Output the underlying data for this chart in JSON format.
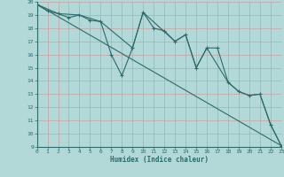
{
  "xlabel": "Humidex (Indice chaleur)",
  "background_color": "#b2d8d8",
  "grid_color": "#d4d4d4",
  "line_color": "#2d6b6b",
  "ylim": [
    9,
    20
  ],
  "xlim": [
    0,
    23
  ],
  "yticks": [
    9,
    10,
    11,
    12,
    13,
    14,
    15,
    16,
    17,
    18,
    19,
    20
  ],
  "xticks": [
    0,
    1,
    2,
    3,
    4,
    5,
    6,
    7,
    8,
    9,
    10,
    11,
    12,
    13,
    14,
    15,
    16,
    17,
    18,
    19,
    20,
    21,
    22,
    23
  ],
  "line1_x": [
    0,
    1,
    2,
    3,
    4,
    5,
    6,
    7,
    8,
    9,
    10,
    11,
    12,
    13,
    14,
    15,
    16,
    17,
    18,
    19,
    20,
    21,
    22,
    23
  ],
  "line1_y": [
    19.8,
    19.3,
    19.1,
    18.8,
    19.0,
    18.6,
    18.5,
    16.0,
    14.4,
    16.5,
    19.2,
    18.0,
    17.8,
    17.0,
    17.5,
    15.0,
    16.5,
    16.5,
    13.9,
    13.2,
    12.9,
    13.0,
    10.7,
    9.1
  ],
  "line2_x": [
    0,
    2,
    4,
    6,
    9,
    10,
    13,
    14,
    15,
    16,
    18,
    19,
    20,
    21,
    22,
    23
  ],
  "line2_y": [
    19.8,
    19.1,
    19.0,
    18.5,
    16.5,
    19.2,
    17.0,
    17.5,
    15.0,
    16.5,
    13.9,
    13.2,
    12.9,
    13.0,
    10.7,
    9.1
  ],
  "line3_x": [
    0,
    23
  ],
  "line3_y": [
    19.8,
    9.1
  ]
}
